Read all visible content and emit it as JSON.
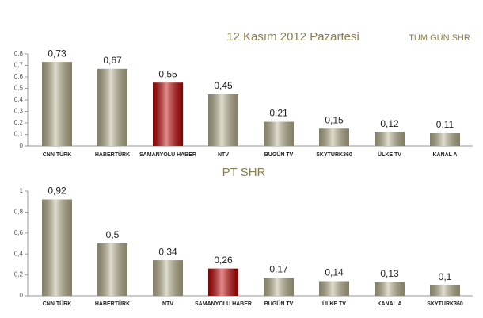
{
  "chart_data": [
    {
      "type": "bar",
      "title": "12 Kasım 2012 Pazartesi",
      "subtitle": "TÜM GÜN SHR",
      "categories": [
        "CNN TÜRK",
        "HABERTÜRK",
        "SAMANYOLU HABER",
        "NTV",
        "BUGÜN TV",
        "SKYTURK360",
        "ÜLKE TV",
        "KANAL A"
      ],
      "values": [
        0.73,
        0.67,
        0.55,
        0.45,
        0.21,
        0.15,
        0.12,
        0.11
      ],
      "value_labels": [
        "0,73",
        "0,67",
        "0,55",
        "0,45",
        "0,21",
        "0,15",
        "0,12",
        "0,11"
      ],
      "colors": [
        "#bdb592",
        "#bdb592",
        "#c00000",
        "#bdb592",
        "#bdb592",
        "#bdb592",
        "#bdb592",
        "#bdb592"
      ],
      "ylim": [
        0,
        0.8
      ],
      "yticks": [
        0,
        {
          "value": 0.1,
          "label": "0,1"
        },
        {
          "value": 0.2,
          "label": "0,2"
        },
        {
          "value": 0.3,
          "label": "0,3"
        },
        {
          "value": 0.4,
          "label": "0,4"
        },
        {
          "value": 0.5,
          "label": "0,5"
        },
        {
          "value": 0.6,
          "label": "0,6"
        },
        {
          "value": 0.7,
          "label": "0,7"
        },
        {
          "value": 0.8,
          "label": "0,8"
        }
      ]
    },
    {
      "type": "bar",
      "title": "PT SHR",
      "categories": [
        "CNN TÜRK",
        "HABERTÜRK",
        "NTV",
        "SAMANYOLU HABER",
        "BUGÜN TV",
        "ÜLKE TV",
        "KANAL A",
        "SKYTURK360"
      ],
      "values": [
        0.92,
        0.5,
        0.34,
        0.26,
        0.17,
        0.14,
        0.13,
        0.1
      ],
      "value_labels": [
        "0,92",
        "0,5",
        "0,34",
        "0,26",
        "0,17",
        "0,14",
        "0,13",
        "0,1"
      ],
      "colors": [
        "#bdb592",
        "#bdb592",
        "#bdb592",
        "#c00000",
        "#bdb592",
        "#bdb592",
        "#bdb592",
        "#bdb592"
      ],
      "ylim": [
        0,
        1
      ],
      "yticks": [
        0,
        {
          "value": 0.2,
          "label": "0,2"
        },
        {
          "value": 0.4,
          "label": "0,4"
        },
        {
          "value": 0.6,
          "label": "0,6"
        },
        {
          "value": 0.8,
          "label": "0,8"
        },
        1
      ]
    }
  ]
}
